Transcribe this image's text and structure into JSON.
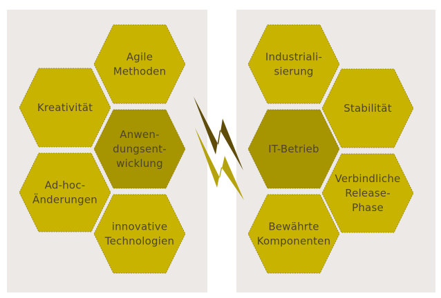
{
  "colors": {
    "panel": "#ece9e6",
    "hex_light": "#c8b400",
    "hex_dark": "#a69400",
    "hex_border": "#8c7d10",
    "text": "#4e4426",
    "bolt_dark": "#5e4c08",
    "bolt_light": "#b4a20e"
  },
  "left_panel": {
    "center": {
      "lines": [
        "Anwen-",
        "dungsent-",
        "wicklung"
      ]
    },
    "items": [
      {
        "lines": [
          "Agile",
          "Methoden"
        ]
      },
      {
        "lines": [
          "Kreativität"
        ]
      },
      {
        "lines": [
          "Ad-hoc-",
          "Änderungen"
        ]
      },
      {
        "lines": [
          "innovative",
          "Technologien"
        ]
      }
    ]
  },
  "right_panel": {
    "center": {
      "lines": [
        "IT-Betrieb"
      ]
    },
    "items": [
      {
        "lines": [
          "Industriali-",
          "sierung"
        ]
      },
      {
        "lines": [
          "Stabilität"
        ]
      },
      {
        "lines": [
          "Verbindliche",
          "Release-",
          "Phase"
        ]
      },
      {
        "lines": [
          "Bewährte",
          "Komponenten"
        ]
      }
    ]
  },
  "separator_icon": "lightning-bolt-icon"
}
